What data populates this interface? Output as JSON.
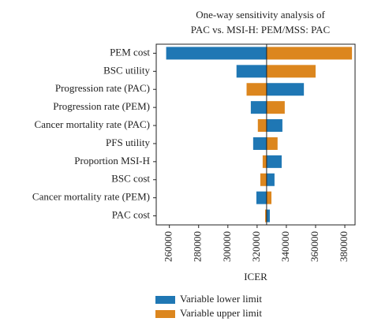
{
  "chart_data": {
    "type": "tornado",
    "title": [
      "One-way sensitivity analysis of",
      "PAC vs. MSI-H: PEM/MSS: PAC"
    ],
    "x_label": "ICER",
    "categories": [
      "PEM cost",
      "BSC utility",
      "Progression rate (PAC)",
      "Progression rate (PEM)",
      "Cancer mortality rate (PAC)",
      "PFS utility",
      "Proportion MSI-H",
      "BSC cost",
      "Cancer mortality rate (PEM)",
      "PAC cost"
    ],
    "base": 326500,
    "series": [
      {
        "name": "Variable lower limit",
        "color": "#1f77b4",
        "values": [
          257800,
          305900,
          352000,
          315700,
          337300,
          317300,
          336800,
          331900,
          319500,
          328700
        ]
      },
      {
        "name": "Variable upper limit",
        "color": "#dc861e",
        "values": [
          384900,
          360000,
          312800,
          338900,
          320500,
          334000,
          323800,
          322200,
          329800,
          325500
        ]
      }
    ],
    "xlim": [
      251000,
      387000
    ],
    "xticks": [
      260000,
      280000,
      300000,
      320000,
      340000,
      360000,
      380000
    ],
    "legend": "below"
  }
}
